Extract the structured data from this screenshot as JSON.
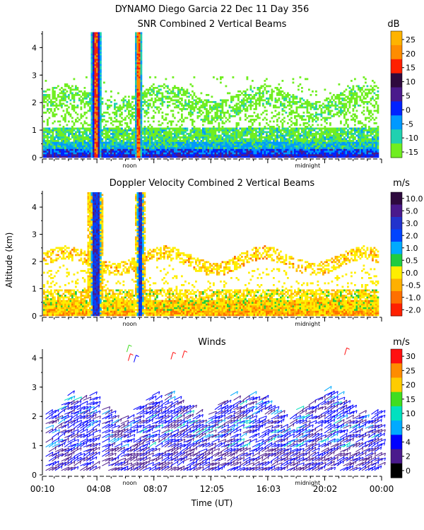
{
  "title": "DYNAMO Diego Garcia  22 Dec 11 Day 356",
  "ylabel": "Altitude (km)",
  "xlabel": "Time (UT)",
  "x_ticks": [
    "00:10",
    "04:08",
    "08:07",
    "12:05",
    "16:03",
    "20:02",
    "00:00"
  ],
  "y_ticks": [
    "0",
    "1",
    "2",
    "3",
    "4"
  ],
  "noon_label": "noon",
  "midnight_label": "midnight",
  "chart_data": [
    {
      "type": "heatmap",
      "title": "SNR Combined 2 Vertical Beams",
      "ylabel": "Altitude (km)",
      "ylim": [
        0,
        4.6
      ],
      "xlim_hours": [
        0.17,
        24.0
      ],
      "colorbar": {
        "unit": "dB",
        "tick_labels": [
          "25",
          "20",
          "15",
          "10",
          "5",
          "0",
          "-5",
          "-10",
          "-15"
        ],
        "colors": [
          "#ffb300",
          "#ff8c00",
          "#ff2000",
          "#2e0a3e",
          "#4a1a8c",
          "#0022ff",
          "#0099ff",
          "#20d0b0",
          "#70ee20"
        ]
      },
      "features": [
        {
          "label": "cloud/precip column",
          "start_hour": 3.5,
          "end_hour": 4.3,
          "top_km": 4.6
        },
        {
          "label": "cloud/precip column",
          "start_hour": 6.6,
          "end_hour": 7.1,
          "top_km": 4.6
        }
      ],
      "layer_top_km": 2.3,
      "surface_layer_km": 0.5
    },
    {
      "type": "heatmap",
      "title": "Doppler Velocity Combined 2 Vertical Beams",
      "ylabel": "Altitude (km)",
      "ylim": [
        0,
        4.6
      ],
      "xlim_hours": [
        0.17,
        24.0
      ],
      "colorbar": {
        "unit": "m/s",
        "tick_labels": [
          "10.0",
          "5.0",
          "3.0",
          "2.0",
          "1.0",
          "0.5",
          "0.0",
          "-0.5",
          "-1.0",
          "-2.0"
        ],
        "colors": [
          "#2e0a3e",
          "#4a1a8c",
          "#2233cc",
          "#0044ff",
          "#00aaff",
          "#20cc40",
          "#ffee00",
          "#ffb000",
          "#ff7000",
          "#ff2000"
        ]
      },
      "features": [
        {
          "label": "updraft column",
          "start_hour": 3.3,
          "end_hour": 4.4,
          "top_km": 4.6
        },
        {
          "label": "updraft column",
          "start_hour": 6.6,
          "end_hour": 7.3,
          "top_km": 4.6
        }
      ]
    },
    {
      "type": "wind-barbs",
      "title": "Winds",
      "ylabel": "Altitude (km)",
      "ylim": [
        0,
        4.3
      ],
      "xlim_hours": [
        0.17,
        24.0
      ],
      "colorbar": {
        "unit": "m/s",
        "tick_labels": [
          "30",
          "25",
          "20",
          "15",
          "10",
          "8",
          "4",
          "2",
          "0"
        ],
        "colors": [
          "#ff1010",
          "#ff8c00",
          "#ffcc00",
          "#40dd20",
          "#00e0c0",
          "#00aaff",
          "#0000ff",
          "#4a1a8c",
          "#000000"
        ]
      },
      "dominant_speed_class": "2-4 m/s",
      "max_height_km": 3.0,
      "isolated_high_barbs_km": 4.0
    }
  ]
}
